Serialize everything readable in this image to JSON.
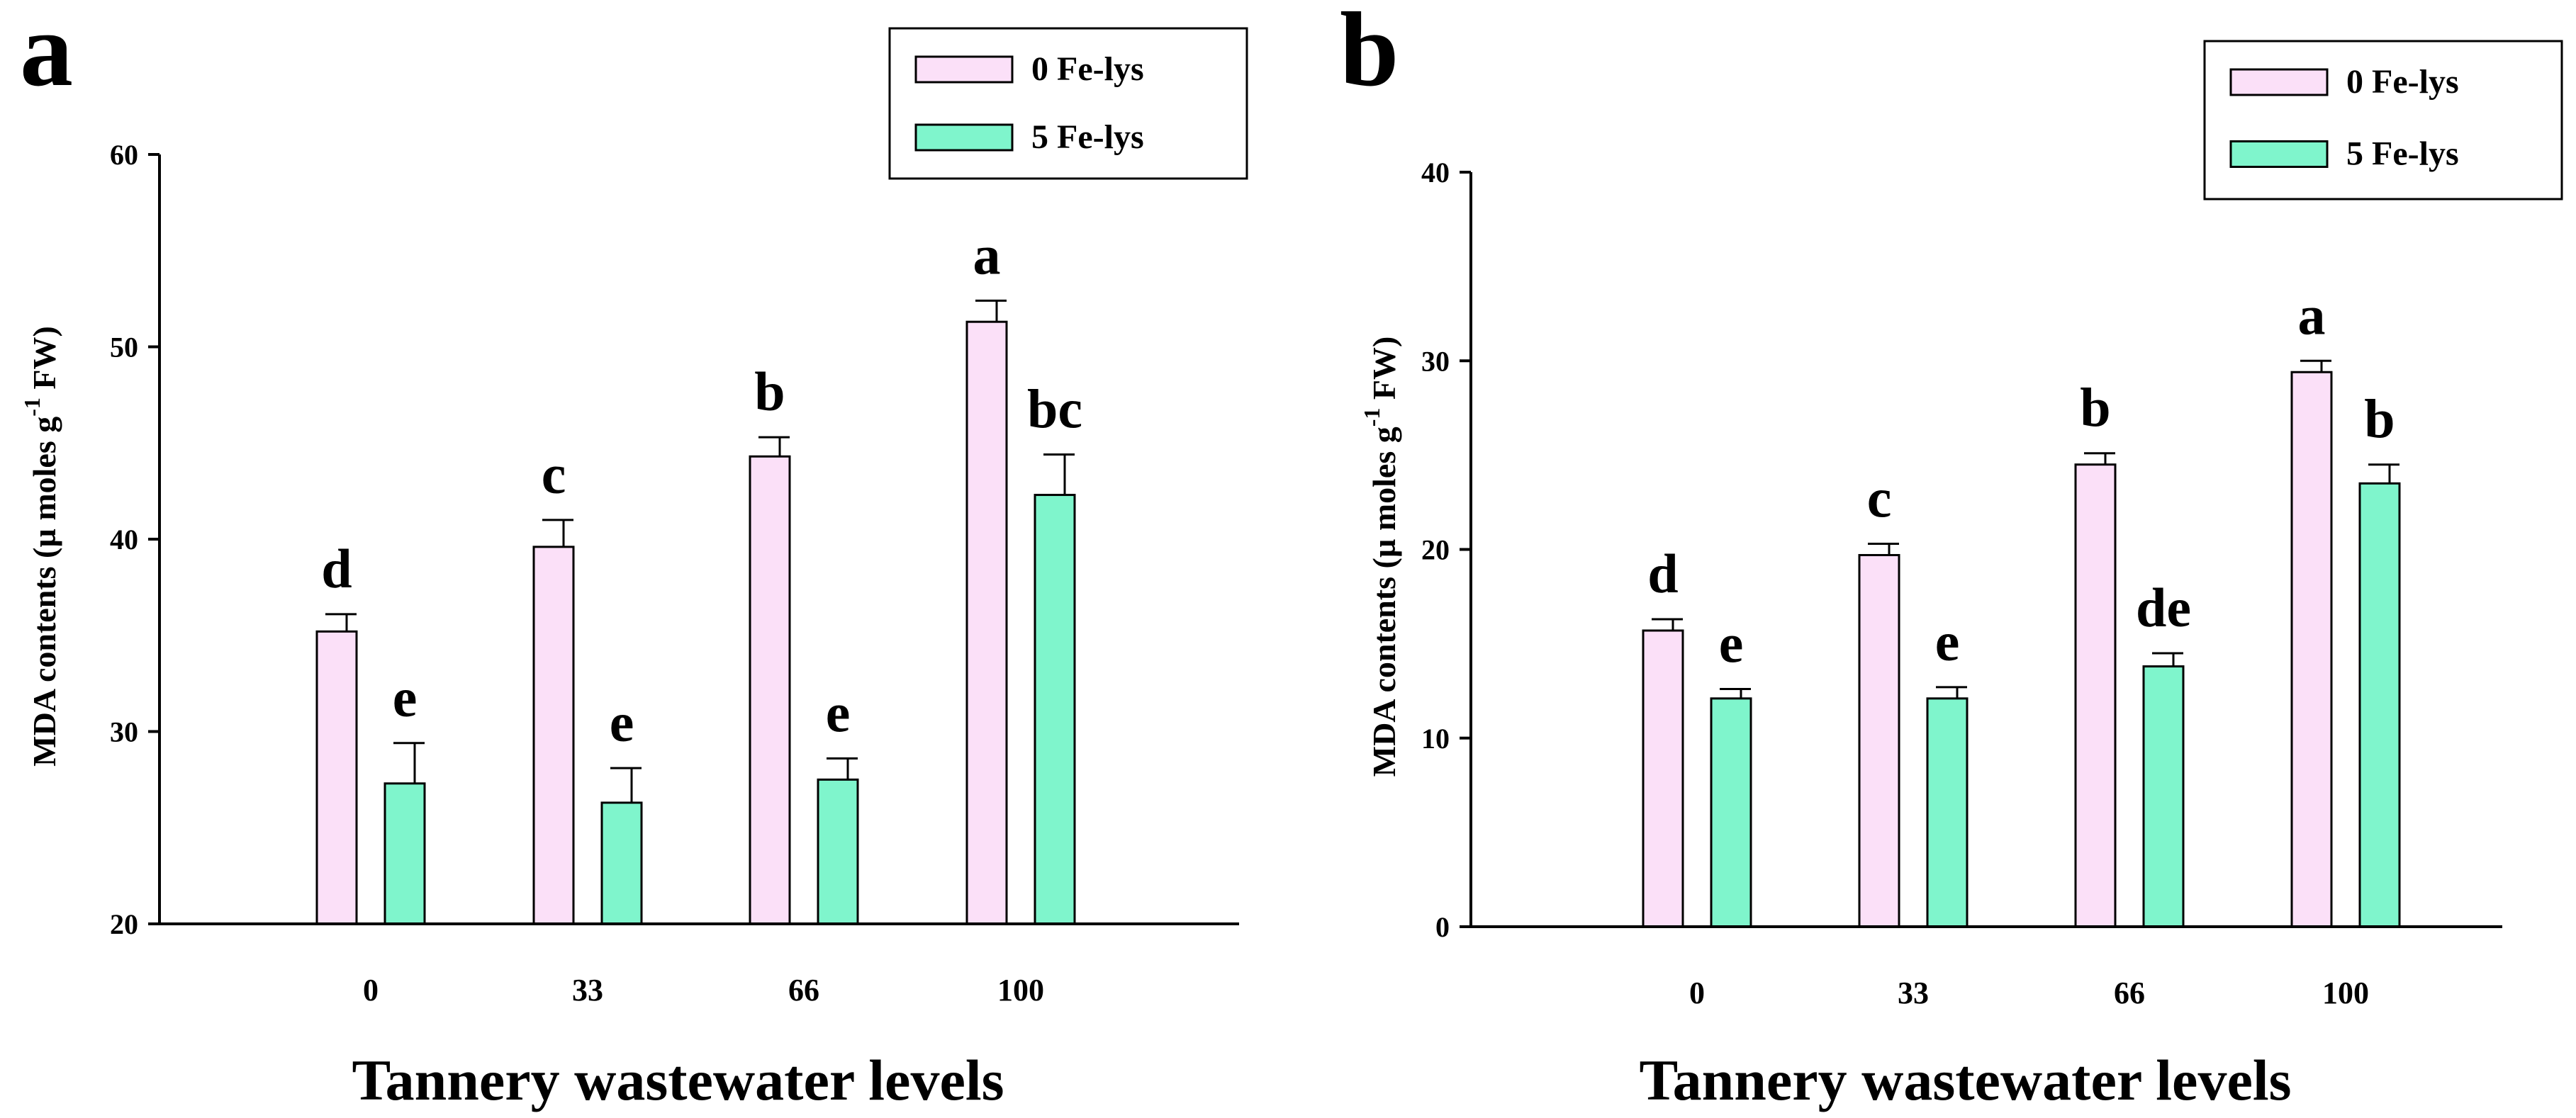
{
  "chart_data": [
    {
      "panel_label": "a",
      "type": "bar",
      "categories": [
        "0",
        "33",
        "66",
        "100"
      ],
      "series": [
        {
          "name": "0 Fe-lys",
          "color": "#fbe0f8",
          "values": [
            35.2,
            39.6,
            44.3,
            51.3
          ],
          "errors": [
            0.9,
            1.4,
            1.0,
            1.1
          ],
          "letters": [
            "d",
            "c",
            "b",
            "a"
          ]
        },
        {
          "name": "5 Fe-lys",
          "color": "#7ff5cc",
          "values": [
            27.3,
            26.3,
            27.5,
            42.3
          ],
          "errors": [
            2.1,
            1.8,
            1.1,
            2.1
          ],
          "letters": [
            "e",
            "e",
            "e",
            "bc"
          ]
        }
      ],
      "ylim": [
        20,
        60
      ],
      "yticks": [
        "20",
        "30",
        "40",
        "50",
        "60"
      ],
      "xlabel": "Tannery wastewater levels",
      "ylabel": "MDA contents (µ moles g",
      "ylabel_sup": "-1",
      "ylabel_tail": " FW)",
      "legend_position": "top-right"
    },
    {
      "panel_label": "b",
      "type": "bar",
      "categories": [
        "0",
        "33",
        "66",
        "100"
      ],
      "series": [
        {
          "name": "0 Fe-lys",
          "color": "#fbe0f8",
          "values": [
            15.7,
            19.7,
            24.5,
            29.4
          ],
          "errors": [
            0.6,
            0.6,
            0.6,
            0.6
          ],
          "letters": [
            "d",
            "c",
            "b",
            "a"
          ]
        },
        {
          "name": "5 Fe-lys",
          "color": "#7ff5cc",
          "values": [
            12.1,
            12.1,
            13.8,
            23.5
          ],
          "errors": [
            0.5,
            0.6,
            0.7,
            1.0
          ],
          "letters": [
            "e",
            "e",
            "de",
            "b"
          ]
        }
      ],
      "ylim": [
        0,
        40
      ],
      "yticks": [
        "0",
        "10",
        "20",
        "30",
        "40"
      ],
      "xlabel": "Tannery wastewater levels",
      "ylabel": "MDA contents (µ moles g",
      "ylabel_sup": "-1",
      "ylabel_tail": " FW)",
      "legend_position": "top-right"
    }
  ]
}
